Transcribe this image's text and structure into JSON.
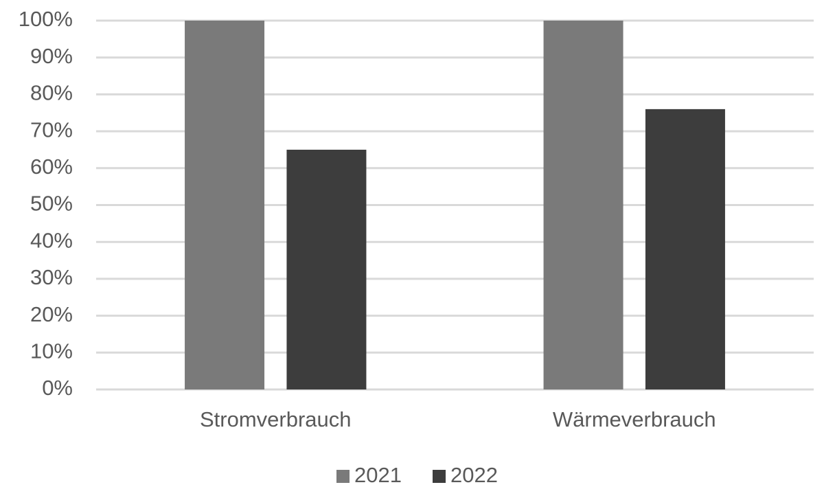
{
  "chart_data": {
    "type": "bar",
    "categories": [
      "Stromverbrauch",
      "Wärmeverbrauch"
    ],
    "series": [
      {
        "name": "2021",
        "color": "#7a7a7a",
        "values": [
          100,
          100
        ]
      },
      {
        "name": "2022",
        "color": "#3d3d3d",
        "values": [
          65,
          76
        ]
      }
    ],
    "ylim": [
      0,
      100
    ],
    "yticks": [
      {
        "value": 0,
        "label": "0%"
      },
      {
        "value": 10,
        "label": "10%"
      },
      {
        "value": 20,
        "label": "20%"
      },
      {
        "value": 30,
        "label": "30%"
      },
      {
        "value": 40,
        "label": "40%"
      },
      {
        "value": 50,
        "label": "50%"
      },
      {
        "value": 60,
        "label": "60%"
      },
      {
        "value": 70,
        "label": "70%"
      },
      {
        "value": 80,
        "label": "80%"
      },
      {
        "value": 90,
        "label": "90%"
      },
      {
        "value": 100,
        "label": "100%"
      }
    ],
    "grid": true,
    "legend": "bottom"
  }
}
